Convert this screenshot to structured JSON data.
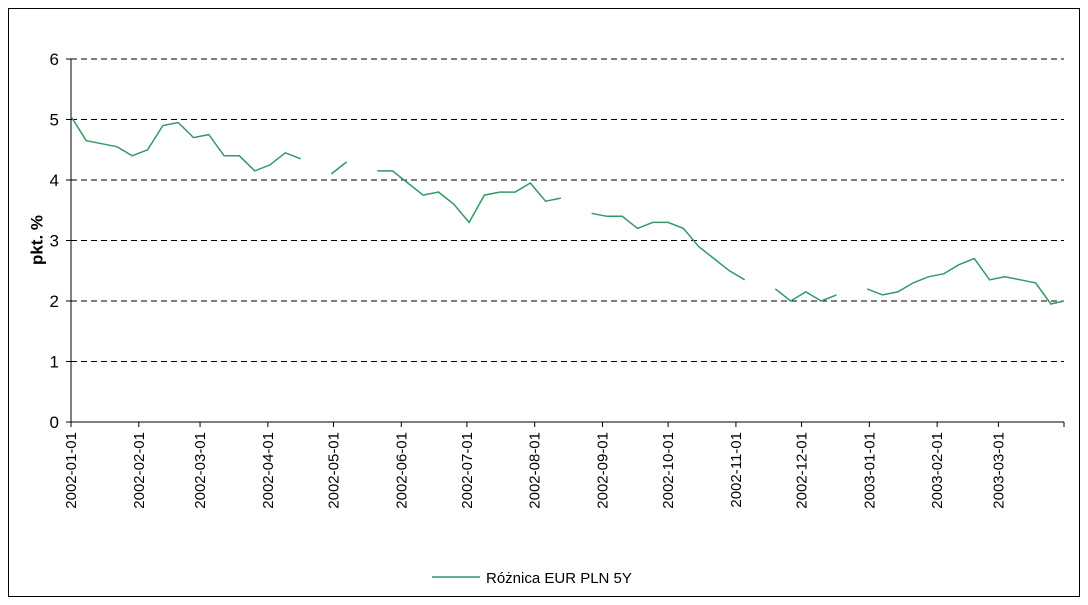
{
  "chart_data": {
    "type": "line",
    "y_label": "pkt. %",
    "x": [
      "2002-01-01",
      "2002-01-08",
      "2002-01-15",
      "2002-01-22",
      "2002-01-29",
      "2002-02-05",
      "2002-02-12",
      "2002-02-19",
      "2002-02-26",
      "2002-03-05",
      "2002-03-12",
      "2002-03-19",
      "2002-03-26",
      "2002-04-02",
      "2002-04-09",
      "2002-04-16",
      "2002-04-23",
      "2002-04-30",
      "2002-05-07",
      "2002-05-14",
      "2002-05-21",
      "2002-05-28",
      "2002-06-04",
      "2002-06-11",
      "2002-06-18",
      "2002-06-25",
      "2002-07-02",
      "2002-07-09",
      "2002-07-16",
      "2002-07-23",
      "2002-07-30",
      "2002-08-06",
      "2002-08-13",
      "2002-08-20",
      "2002-08-27",
      "2002-09-03",
      "2002-09-10",
      "2002-09-17",
      "2002-09-24",
      "2002-10-01",
      "2002-10-08",
      "2002-10-15",
      "2002-10-22",
      "2002-10-29",
      "2002-11-05",
      "2002-11-12",
      "2002-11-19",
      "2002-11-26",
      "2002-12-03",
      "2002-12-10",
      "2002-12-17",
      "2002-12-24",
      "2002-12-31",
      "2003-01-07",
      "2003-01-14",
      "2003-01-21",
      "2003-01-28",
      "2003-02-04",
      "2003-02-11",
      "2003-02-18",
      "2003-02-25",
      "2003-03-04",
      "2003-03-11",
      "2003-03-18",
      "2003-03-25",
      "2003-03-31"
    ],
    "series": [
      {
        "name": "Różnica EUR PLN 5Y",
        "color": "#339966",
        "values": [
          5.05,
          4.65,
          4.6,
          4.55,
          4.4,
          4.5,
          4.9,
          4.95,
          4.7,
          4.75,
          4.4,
          4.4,
          4.15,
          4.25,
          4.45,
          4.35,
          null,
          4.1,
          4.3,
          null,
          4.15,
          4.15,
          3.95,
          3.75,
          3.8,
          3.6,
          3.3,
          3.75,
          3.8,
          3.8,
          3.95,
          3.65,
          3.7,
          null,
          3.45,
          3.4,
          3.4,
          3.2,
          3.3,
          3.3,
          3.2,
          2.9,
          2.7,
          2.5,
          2.35,
          null,
          2.2,
          2.0,
          2.15,
          2.0,
          2.1,
          null,
          2.2,
          2.1,
          2.15,
          2.3,
          2.4,
          2.45,
          2.6,
          2.7,
          2.35,
          2.4,
          2.35,
          2.3,
          1.95,
          2.0
        ]
      }
    ],
    "xlim": [
      "2002-01-01",
      "2003-03-31"
    ],
    "xticks": [
      "2002-01-01",
      "2002-02-01",
      "2002-03-01",
      "2002-04-01",
      "2002-05-01",
      "2002-06-01",
      "2002-07-01",
      "2002-08-01",
      "2002-09-01",
      "2002-10-01",
      "2002-11-01",
      "2002-12-01",
      "2003-01-01",
      "2003-02-01",
      "2003-03-01"
    ],
    "ylim": [
      0,
      6
    ],
    "yticks": [
      0,
      1,
      2,
      3,
      4,
      5,
      6
    ],
    "grid": true,
    "legend": "bottom"
  }
}
